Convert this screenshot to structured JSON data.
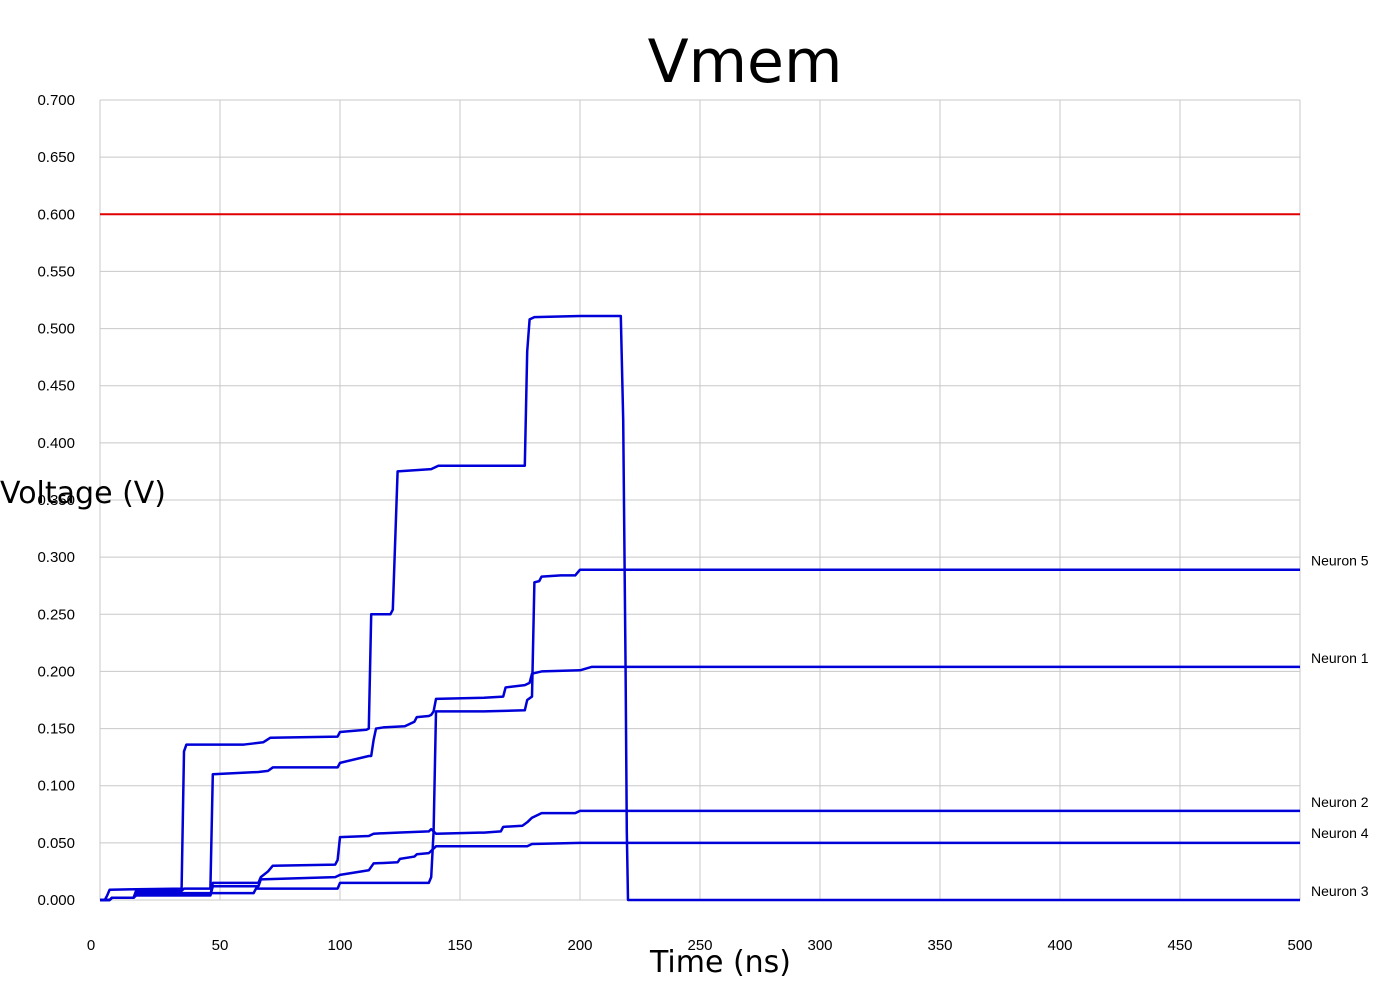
{
  "chart_data": {
    "type": "line",
    "title": "Vmem",
    "xlabel": "Time (ns)",
    "ylabel": "Voltage (V)",
    "xlim": [
      0,
      500
    ],
    "ylim": [
      0,
      0.7
    ],
    "grid": true,
    "xticks": [
      "0",
      "50",
      "100",
      "150",
      "200",
      "250",
      "300",
      "350",
      "400",
      "450",
      "500"
    ],
    "yticks": [
      "0.000",
      "0.050",
      "0.100",
      "0.150",
      "0.200",
      "0.250",
      "0.300",
      "0.350",
      "0.400",
      "0.450",
      "0.500",
      "0.550",
      "0.600",
      "0.650",
      "0.700"
    ],
    "threshold": {
      "value": 0.6,
      "color": "#e00000"
    },
    "series_color": "#0000d8",
    "series": [
      {
        "name": "Neuron 5",
        "points": [
          [
            0,
            0
          ],
          [
            4,
            0
          ],
          [
            5,
            0.002
          ],
          [
            14,
            0.002
          ],
          [
            15,
            0.006
          ],
          [
            64,
            0.006
          ],
          [
            65,
            0.01
          ],
          [
            99,
            0.01
          ],
          [
            100,
            0.015
          ],
          [
            137,
            0.015
          ],
          [
            138,
            0.02
          ],
          [
            139,
            0.06
          ],
          [
            140,
            0.165
          ],
          [
            150,
            0.165
          ],
          [
            160,
            0.165
          ],
          [
            177,
            0.166
          ],
          [
            178,
            0.175
          ],
          [
            180,
            0.178
          ],
          [
            181,
            0.278
          ],
          [
            183,
            0.279
          ],
          [
            184,
            0.283
          ],
          [
            192,
            0.284
          ],
          [
            198,
            0.284
          ],
          [
            200,
            0.289
          ],
          [
            500,
            0.289
          ]
        ]
      },
      {
        "name": "Neuron 1",
        "points": [
          [
            0,
            0
          ],
          [
            4,
            0
          ],
          [
            5,
            0.002
          ],
          [
            14,
            0.002
          ],
          [
            15,
            0.008
          ],
          [
            34,
            0.008
          ],
          [
            35,
            0.01
          ],
          [
            46,
            0.01
          ],
          [
            47,
            0.11
          ],
          [
            66,
            0.112
          ],
          [
            70,
            0.113
          ],
          [
            72,
            0.116
          ],
          [
            99,
            0.116
          ],
          [
            100,
            0.12
          ],
          [
            112,
            0.126
          ],
          [
            113,
            0.126
          ],
          [
            114,
            0.14
          ],
          [
            115,
            0.15
          ],
          [
            118,
            0.151
          ],
          [
            127,
            0.152
          ],
          [
            131,
            0.156
          ],
          [
            132,
            0.16
          ],
          [
            137,
            0.161
          ],
          [
            138,
            0.162
          ],
          [
            139,
            0.165
          ],
          [
            140,
            0.176
          ],
          [
            160,
            0.177
          ],
          [
            168,
            0.178
          ],
          [
            169,
            0.186
          ],
          [
            177,
            0.188
          ],
          [
            179,
            0.19
          ],
          [
            180,
            0.198
          ],
          [
            184,
            0.2
          ],
          [
            200,
            0.201
          ],
          [
            205,
            0.204
          ],
          [
            500,
            0.204
          ]
        ]
      },
      {
        "name": "Neuron 2",
        "points": [
          [
            0,
            0
          ],
          [
            4,
            0
          ],
          [
            5,
            0.002
          ],
          [
            14,
            0.002
          ],
          [
            15,
            0.004
          ],
          [
            46,
            0.004
          ],
          [
            47,
            0.015
          ],
          [
            66,
            0.015
          ],
          [
            67,
            0.02
          ],
          [
            70,
            0.025
          ],
          [
            72,
            0.03
          ],
          [
            98,
            0.031
          ],
          [
            99,
            0.035
          ],
          [
            100,
            0.055
          ],
          [
            112,
            0.056
          ],
          [
            114,
            0.058
          ],
          [
            124,
            0.059
          ],
          [
            137,
            0.06
          ],
          [
            138,
            0.062
          ],
          [
            140,
            0.058
          ],
          [
            158,
            0.059
          ],
          [
            160,
            0.059
          ],
          [
            167,
            0.06
          ],
          [
            168,
            0.064
          ],
          [
            176,
            0.065
          ],
          [
            178,
            0.068
          ],
          [
            180,
            0.072
          ],
          [
            184,
            0.076
          ],
          [
            198,
            0.076
          ],
          [
            200,
            0.078
          ],
          [
            500,
            0.078
          ]
        ]
      },
      {
        "name": "Neuron 4",
        "points": [
          [
            0,
            0
          ],
          [
            4,
            0
          ],
          [
            5,
            0.002
          ],
          [
            14,
            0.002
          ],
          [
            15,
            0.004
          ],
          [
            46,
            0.004
          ],
          [
            47,
            0.012
          ],
          [
            66,
            0.012
          ],
          [
            67,
            0.018
          ],
          [
            98,
            0.02
          ],
          [
            100,
            0.022
          ],
          [
            112,
            0.026
          ],
          [
            114,
            0.032
          ],
          [
            124,
            0.033
          ],
          [
            125,
            0.036
          ],
          [
            131,
            0.038
          ],
          [
            132,
            0.04
          ],
          [
            137,
            0.041
          ],
          [
            138,
            0.043
          ],
          [
            140,
            0.047
          ],
          [
            142,
            0.047
          ],
          [
            178,
            0.047
          ],
          [
            180,
            0.049
          ],
          [
            200,
            0.05
          ],
          [
            500,
            0.05
          ]
        ]
      },
      {
        "name": "Neuron 3",
        "points": [
          [
            0,
            0
          ],
          [
            2,
            0
          ],
          [
            3,
            0.004
          ],
          [
            4,
            0.009
          ],
          [
            34,
            0.01
          ],
          [
            35,
            0.13
          ],
          [
            36,
            0.136
          ],
          [
            60,
            0.136
          ],
          [
            64,
            0.137
          ],
          [
            68,
            0.138
          ],
          [
            71,
            0.142
          ],
          [
            99,
            0.143
          ],
          [
            100,
            0.147
          ],
          [
            111,
            0.149
          ],
          [
            112,
            0.15
          ],
          [
            113,
            0.25
          ],
          [
            121,
            0.25
          ],
          [
            122,
            0.254
          ],
          [
            124,
            0.375
          ],
          [
            138,
            0.377
          ],
          [
            141,
            0.38
          ],
          [
            150,
            0.38
          ],
          [
            177,
            0.38
          ],
          [
            178,
            0.48
          ],
          [
            179,
            0.508
          ],
          [
            181,
            0.51
          ],
          [
            200,
            0.511
          ],
          [
            217,
            0.511
          ],
          [
            218,
            0.42
          ],
          [
            219,
            0.2
          ],
          [
            219.5,
            0.06
          ],
          [
            220,
            0
          ],
          [
            500,
            0
          ]
        ]
      }
    ]
  }
}
